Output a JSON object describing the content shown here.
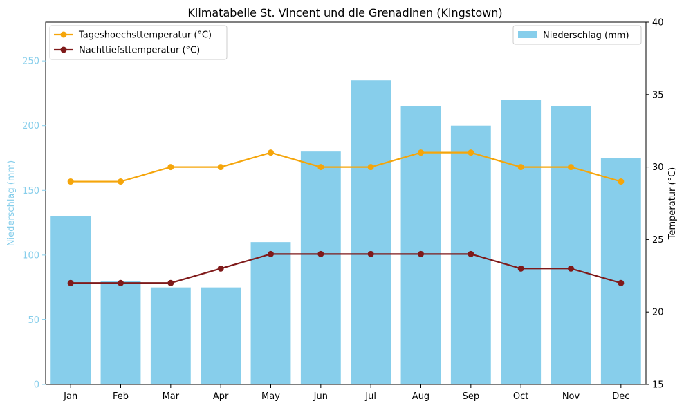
{
  "chart_data": {
    "type": "bar+line",
    "title": "Klimatabelle St. Vincent und die Grenadinen (Kingstown)",
    "categories": [
      "Jan",
      "Feb",
      "Mar",
      "Apr",
      "May",
      "Jun",
      "Jul",
      "Aug",
      "Sep",
      "Oct",
      "Nov",
      "Dec"
    ],
    "precipitation": {
      "name": "Niederschlag (mm)",
      "values": [
        130,
        80,
        75,
        75,
        110,
        180,
        235,
        215,
        200,
        220,
        215,
        175
      ],
      "color": "#87ceeb"
    },
    "series": [
      {
        "name": "Tageshoechsttemperatur (°C)",
        "values": [
          29,
          29,
          30,
          30,
          31,
          30,
          30,
          31,
          31,
          30,
          30,
          29
        ],
        "color": "#f5a50a"
      },
      {
        "name": "Nachttiefsttemperatur (°C)",
        "values": [
          22,
          22,
          22,
          23,
          24,
          24,
          24,
          24,
          24,
          23,
          23,
          22
        ],
        "color": "#7f1a1a"
      }
    ],
    "y_left": {
      "label": "Niederschlag (mm)",
      "ylim": [
        0,
        280
      ],
      "ticks": [
        0,
        50,
        100,
        150,
        200,
        250
      ],
      "color": "#87ceeb"
    },
    "y_right": {
      "label": "Temperatur (°C)",
      "ylim": [
        15,
        40
      ],
      "ticks": [
        15,
        20,
        25,
        30,
        35,
        40
      ]
    },
    "legend_left_placement": "top-left",
    "legend_right_placement": "top-right",
    "grid": false
  }
}
